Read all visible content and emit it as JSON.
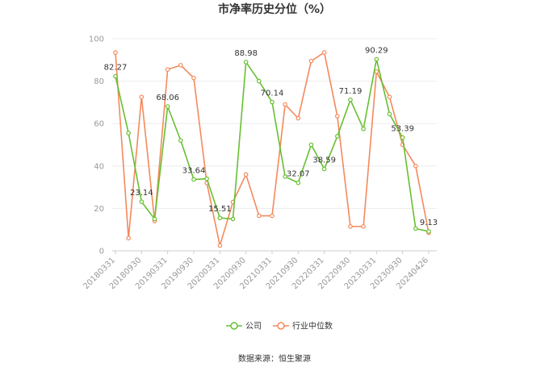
{
  "chart_data": {
    "type": "line",
    "title": "市净率历史分位（%）",
    "source": "数据来源：恒生聚源",
    "xlabel": "",
    "ylabel": "",
    "ylim": [
      0,
      100
    ],
    "yticks": [
      0,
      20,
      40,
      60,
      80,
      100
    ],
    "grid": true,
    "legend_position": "bottom",
    "x_tick_labels": [
      "20180331",
      "20180930",
      "20190331",
      "20190930",
      "20200331",
      "20200930",
      "20210331",
      "20210930",
      "20220331",
      "20220930",
      "20230331",
      "20230930",
      "20240426"
    ],
    "series": [
      {
        "name": "公司",
        "color": "#66c02f",
        "values": [
          82.27,
          55.5,
          23.14,
          15.0,
          68.06,
          52.0,
          33.64,
          34.0,
          15.51,
          15.0,
          88.98,
          80.0,
          70.14,
          35.0,
          32.07,
          50.0,
          38.59,
          54.0,
          71.19,
          57.5,
          90.29,
          64.5,
          53.39,
          10.5,
          9.13
        ],
        "labels": [
          "82.27",
          "",
          "23.14",
          "",
          "68.06",
          "",
          "33.64",
          "",
          "15.51",
          "",
          "88.98",
          "",
          "70.14",
          "",
          "32.07",
          "",
          "38.59",
          "",
          "71.19",
          "",
          "90.29",
          "",
          "53.39",
          "",
          "9.13"
        ]
      },
      {
        "name": "行业中位数",
        "color": "#f4895c",
        "values": [
          93.5,
          6.0,
          72.5,
          14.0,
          85.5,
          87.5,
          81.5,
          32.0,
          2.5,
          23.0,
          36.0,
          16.5,
          16.5,
          69.0,
          62.5,
          89.5,
          93.5,
          63.5,
          11.5,
          11.5,
          84.5,
          72.5,
          50.0,
          40.0,
          8.5
        ]
      }
    ]
  }
}
